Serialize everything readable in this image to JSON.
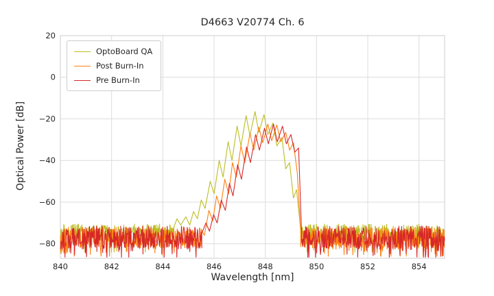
{
  "colors": {
    "background": "#ffffff",
    "grid": "#dcdcdc",
    "plot_border": "#cccccc",
    "axis_text": "#262626"
  },
  "chart_data": {
    "type": "line",
    "title": "D4663 V20774 Ch. 6",
    "xlabel": "Wavelength [nm]",
    "ylabel": "Optical Power [dB]",
    "xlim": [
      840,
      855
    ],
    "ylim": [
      -87,
      20
    ],
    "grid": true,
    "legend_position": "upper left",
    "xticks": [
      {
        "v": 840,
        "label": "840"
      },
      {
        "v": 842,
        "label": "842"
      },
      {
        "v": 844,
        "label": "844"
      },
      {
        "v": 846,
        "label": "846"
      },
      {
        "v": 848,
        "label": "848"
      },
      {
        "v": 850,
        "label": "850"
      },
      {
        "v": 852,
        "label": "852"
      },
      {
        "v": 854,
        "label": "854"
      }
    ],
    "yticks": [
      {
        "v": 20,
        "label": "20"
      },
      {
        "v": 0,
        "label": "0"
      },
      {
        "v": -20,
        "label": "−20"
      },
      {
        "v": -40,
        "label": "−40"
      },
      {
        "v": -60,
        "label": "−60"
      },
      {
        "v": -80,
        "label": "−80"
      }
    ],
    "series": [
      {
        "name": "OptoBoard QA",
        "color": "#bcbd22",
        "noise": {
          "mean": -75,
          "amplitude": 4.5,
          "spike_prob": 0.15,
          "spike_depth": 8,
          "min": -84,
          "max": -67,
          "seed": 7,
          "regions": [
            [
              840,
              844.4
            ],
            [
              849.38,
              855
            ]
          ]
        },
        "peak_points": [
          [
            844.4,
            -73
          ],
          [
            844.55,
            -68
          ],
          [
            844.7,
            -71
          ],
          [
            844.9,
            -67
          ],
          [
            845.05,
            -71
          ],
          [
            845.2,
            -64.5
          ],
          [
            845.35,
            -68
          ],
          [
            845.5,
            -59
          ],
          [
            845.65,
            -63
          ],
          [
            845.85,
            -50
          ],
          [
            846.0,
            -56
          ],
          [
            846.2,
            -40
          ],
          [
            846.35,
            -48
          ],
          [
            846.55,
            -31
          ],
          [
            846.7,
            -40
          ],
          [
            846.9,
            -23.5
          ],
          [
            847.05,
            -33
          ],
          [
            847.25,
            -18.5
          ],
          [
            847.4,
            -28
          ],
          [
            847.6,
            -16.5
          ],
          [
            847.75,
            -26.5
          ],
          [
            847.95,
            -18
          ],
          [
            848.1,
            -27.5
          ],
          [
            848.3,
            -22
          ],
          [
            848.45,
            -33
          ],
          [
            848.65,
            -29
          ],
          [
            848.8,
            -44
          ],
          [
            848.95,
            -41
          ],
          [
            849.1,
            -58
          ],
          [
            849.22,
            -54
          ],
          [
            849.38,
            -73
          ]
        ]
      },
      {
        "name": "Post Burn-In",
        "color": "#ff7f0e",
        "noise": {
          "mean": -77,
          "amplitude": 5,
          "spike_prob": 0.2,
          "spike_depth": 8,
          "min": -86,
          "max": -68,
          "seed": 13,
          "regions": [
            [
              840,
              845.5
            ],
            [
              849.38,
              855
            ]
          ]
        },
        "peak_points": [
          [
            845.5,
            -73
          ],
          [
            845.62,
            -76
          ],
          [
            845.8,
            -64
          ],
          [
            845.95,
            -69
          ],
          [
            846.1,
            -57
          ],
          [
            846.25,
            -63
          ],
          [
            846.42,
            -49
          ],
          [
            846.57,
            -56
          ],
          [
            846.72,
            -41
          ],
          [
            846.87,
            -48
          ],
          [
            847.05,
            -33
          ],
          [
            847.2,
            -41
          ],
          [
            847.4,
            -27
          ],
          [
            847.55,
            -35
          ],
          [
            847.75,
            -24
          ],
          [
            847.9,
            -31.5
          ],
          [
            848.1,
            -22.5
          ],
          [
            848.25,
            -30.5
          ],
          [
            848.45,
            -23
          ],
          [
            848.6,
            -31
          ],
          [
            848.8,
            -26.5
          ],
          [
            848.95,
            -35
          ],
          [
            849.1,
            -31.5
          ],
          [
            849.25,
            -46
          ],
          [
            849.38,
            -74
          ]
        ]
      },
      {
        "name": "Pre Burn-In",
        "color": "#d62728",
        "noise": {
          "mean": -77,
          "amplitude": 5.5,
          "spike_prob": 0.22,
          "spike_depth": 8,
          "min": -86.5,
          "max": -68,
          "seed": 29,
          "regions": [
            [
              840,
              845.52
            ],
            [
              849.42,
              855
            ]
          ]
        },
        "peak_points": [
          [
            845.52,
            -75
          ],
          [
            845.68,
            -70
          ],
          [
            845.82,
            -74
          ],
          [
            845.98,
            -66
          ],
          [
            846.12,
            -70
          ],
          [
            846.28,
            -59
          ],
          [
            846.44,
            -64
          ],
          [
            846.6,
            -51
          ],
          [
            846.74,
            -57
          ],
          [
            846.92,
            -42
          ],
          [
            847.07,
            -49
          ],
          [
            847.27,
            -33.5
          ],
          [
            847.42,
            -41
          ],
          [
            847.62,
            -27.5
          ],
          [
            847.77,
            -35
          ],
          [
            847.97,
            -24.5
          ],
          [
            848.12,
            -32
          ],
          [
            848.32,
            -22.5
          ],
          [
            848.47,
            -31
          ],
          [
            848.67,
            -23.5
          ],
          [
            848.82,
            -32
          ],
          [
            849.0,
            -27.5
          ],
          [
            849.15,
            -36
          ],
          [
            849.3,
            -34
          ],
          [
            849.42,
            -76
          ]
        ]
      }
    ]
  }
}
